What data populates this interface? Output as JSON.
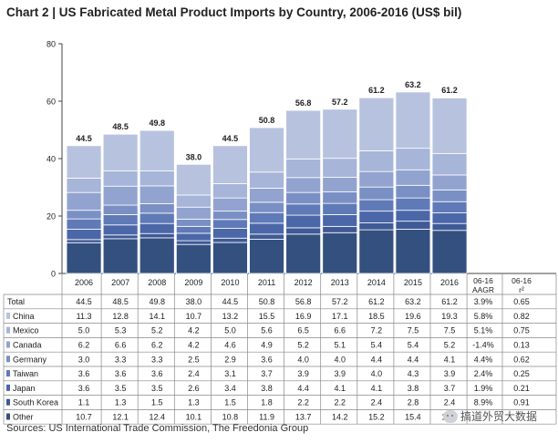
{
  "chart_data": {
    "type": "bar",
    "stacked": true,
    "title": "Chart 2 | US Fabricated Metal Product Imports by Country, 2006-2016 (US$ bil)",
    "categories": [
      "2006",
      "2007",
      "2008",
      "2009",
      "2010",
      "2011",
      "2012",
      "2013",
      "2014",
      "2015",
      "2016"
    ],
    "extra_columns": [
      "06-16 AAGR",
      "06-16 r²"
    ],
    "ylim": [
      0,
      80
    ],
    "yticks": [
      0,
      20,
      40,
      60,
      80
    ],
    "grid": false,
    "totals": {
      "name": "Total",
      "values": [
        44.5,
        48.5,
        49.8,
        38.0,
        44.5,
        50.8,
        56.8,
        57.2,
        61.2,
        63.2,
        61.2
      ],
      "labels": [
        "44.5",
        "48.5",
        "49.8",
        "38.0",
        "44.5",
        "50.8",
        "56.8",
        "57.2",
        "61.2",
        "63.2",
        "61.2"
      ],
      "aagr": "3.9%",
      "r2": "0.65"
    },
    "series": [
      {
        "name": "China",
        "color": "#b7c3de",
        "values": [
          11.3,
          12.8,
          14.1,
          10.7,
          13.2,
          15.5,
          16.9,
          17.1,
          18.5,
          19.6,
          19.3
        ],
        "aagr": "5.8%",
        "r2": "0.82"
      },
      {
        "name": "Mexico",
        "color": "#a6b5d8",
        "values": [
          5.0,
          5.3,
          5.2,
          4.2,
          5.0,
          5.6,
          6.5,
          6.6,
          7.2,
          7.5,
          7.5
        ],
        "aagr": "5.1%",
        "r2": "0.75"
      },
      {
        "name": "Canada",
        "color": "#92a3cf",
        "values": [
          6.2,
          6.6,
          6.2,
          4.2,
          4.6,
          4.9,
          5.2,
          5.1,
          5.4,
          5.4,
          5.2
        ],
        "aagr": "-1.4%",
        "r2": "0.13"
      },
      {
        "name": "Germany",
        "color": "#7a8fc4",
        "values": [
          3.0,
          3.3,
          3.3,
          2.5,
          2.9,
          3.6,
          4.0,
          4.0,
          4.4,
          4.4,
          4.1
        ],
        "aagr": "4.4%",
        "r2": "0.62"
      },
      {
        "name": "Taiwan",
        "color": "#5f7ab7",
        "values": [
          3.6,
          3.6,
          3.6,
          2.4,
          3.1,
          3.7,
          3.9,
          3.9,
          4.0,
          4.3,
          3.9
        ],
        "aagr": "2.4%",
        "r2": "0.25"
      },
      {
        "name": "Japan",
        "color": "#4c67a8",
        "values": [
          3.6,
          3.5,
          3.5,
          2.6,
          3.4,
          3.8,
          4.4,
          4.1,
          4.1,
          3.8,
          3.7
        ],
        "aagr": "1.9%",
        "r2": "0.21"
      },
      {
        "name": "South Korea",
        "color": "#3f5a97",
        "values": [
          1.1,
          1.3,
          1.5,
          1.3,
          1.5,
          1.8,
          2.2,
          2.2,
          2.4,
          2.8,
          2.4
        ],
        "aagr": "8.9%",
        "r2": "0.91"
      },
      {
        "name": "Other",
        "color": "#34507f",
        "values": [
          10.7,
          12.1,
          12.4,
          10.1,
          10.8,
          11.9,
          13.7,
          14.2,
          15.2,
          15.4,
          15.0
        ],
        "aagr": "",
        "r2": ""
      }
    ]
  },
  "footer": {
    "source": "Sources: US International Trade Commission, The Freedonia Group"
  },
  "watermark": {
    "text": "搞道外贸大数据"
  }
}
